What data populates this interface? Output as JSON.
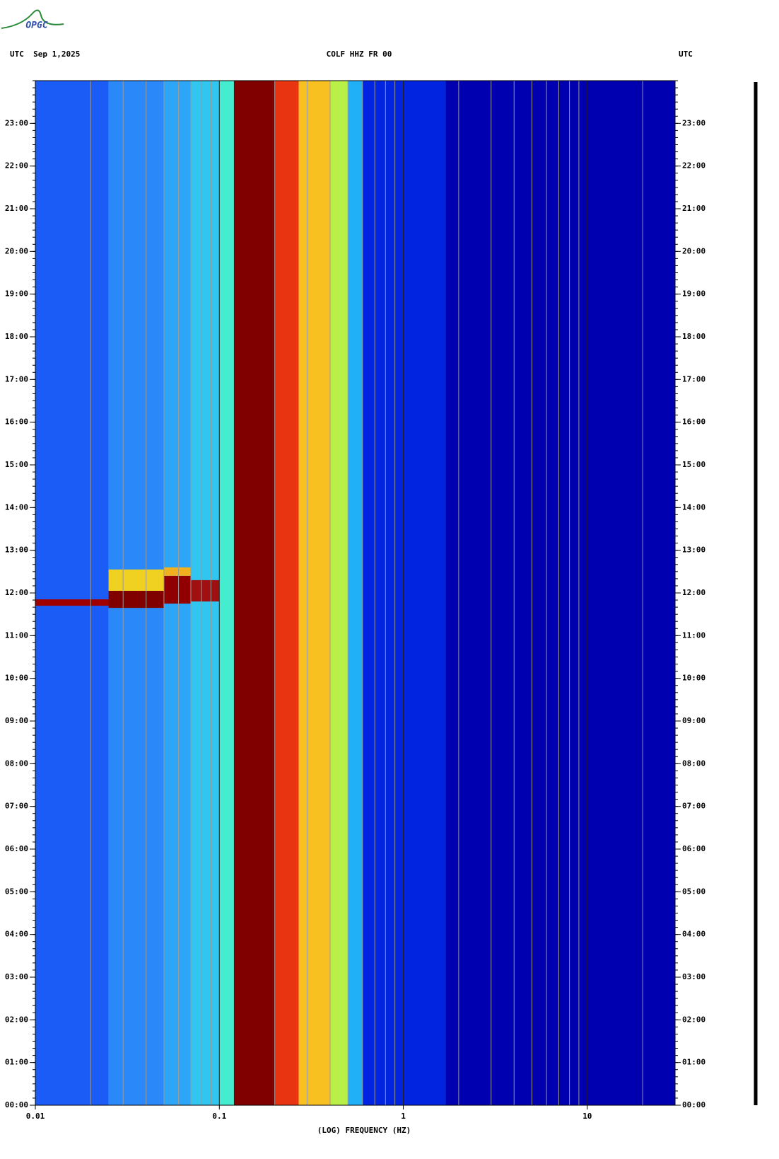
{
  "logo": "OPGC",
  "chart_data": {
    "type": "spectrogram",
    "title": "COLF HHZ FR 00",
    "date_label": "UTC  Sep 1,2025",
    "right_label": "UTC",
    "x_label": "(LOG) FREQUENCY (HZ)",
    "xlog": true,
    "xlim": [
      0.01,
      30
    ],
    "xticks": [
      0.01,
      0.1,
      1,
      10
    ],
    "xgrid": [
      0.02,
      0.03,
      0.04,
      0.05,
      0.06,
      0.07,
      0.08,
      0.09,
      0.2,
      0.3,
      0.4,
      0.5,
      0.6,
      0.7,
      0.8,
      0.9,
      2,
      3,
      4,
      5,
      6,
      7,
      8,
      9,
      20
    ],
    "ylim": [
      0,
      24
    ],
    "yminor_per_hour": 6,
    "yticks": [
      {
        "value": 0,
        "label": "00:00"
      },
      {
        "value": 1,
        "label": "01:00"
      },
      {
        "value": 2,
        "label": "02:00"
      },
      {
        "value": 3,
        "label": "03:00"
      },
      {
        "value": 4,
        "label": "04:00"
      },
      {
        "value": 5,
        "label": "05:00"
      },
      {
        "value": 6,
        "label": "06:00"
      },
      {
        "value": 7,
        "label": "07:00"
      },
      {
        "value": 8,
        "label": "08:00"
      },
      {
        "value": 9,
        "label": "09:00"
      },
      {
        "value": 10,
        "label": "10:00"
      },
      {
        "value": 11,
        "label": "11:00"
      },
      {
        "value": 12,
        "label": "12:00"
      },
      {
        "value": 13,
        "label": "13:00"
      },
      {
        "value": 14,
        "label": "14:00"
      },
      {
        "value": 15,
        "label": "15:00"
      },
      {
        "value": 16,
        "label": "16:00"
      },
      {
        "value": 17,
        "label": "17:00"
      },
      {
        "value": 18,
        "label": "18:00"
      },
      {
        "value": 19,
        "label": "19:00"
      },
      {
        "value": 20,
        "label": "20:00"
      },
      {
        "value": 21,
        "label": "21:00"
      },
      {
        "value": 22,
        "label": "22:00"
      },
      {
        "value": 23,
        "label": "23:00"
      }
    ],
    "bands": [
      {
        "from": 0.01,
        "to": 0.025,
        "color": "#1a5cf5"
      },
      {
        "from": 0.025,
        "to": 0.05,
        "color": "#2a88f8"
      },
      {
        "from": 0.05,
        "to": 0.07,
        "color": "#2ea6f8"
      },
      {
        "from": 0.07,
        "to": 0.1,
        "color": "#30c6f0"
      },
      {
        "from": 0.1,
        "to": 0.12,
        "color": "#44ecd0"
      },
      {
        "from": 0.12,
        "to": 0.2,
        "color": "#800000"
      },
      {
        "from": 0.2,
        "to": 0.27,
        "color": "#e83410"
      },
      {
        "from": 0.27,
        "to": 0.4,
        "color": "#f8c020"
      },
      {
        "from": 0.4,
        "to": 0.5,
        "color": "#b8f048"
      },
      {
        "from": 0.5,
        "to": 0.6,
        "color": "#20b0f8"
      },
      {
        "from": 0.6,
        "to": 1.7,
        "color": "#0024e0"
      },
      {
        "from": 1.7,
        "to": 30,
        "color": "#0000b0"
      }
    ],
    "events": [
      {
        "from": 0.01,
        "to": 0.025,
        "start": 11.7,
        "end": 11.85,
        "color": "#a00000"
      },
      {
        "from": 0.025,
        "to": 0.05,
        "start": 11.65,
        "end": 12.05,
        "color": "#800000"
      },
      {
        "from": 0.025,
        "to": 0.05,
        "start": 12.05,
        "end": 12.55,
        "color": "#f0d020"
      },
      {
        "from": 0.05,
        "to": 0.07,
        "start": 11.75,
        "end": 12.4,
        "color": "#900000"
      },
      {
        "from": 0.05,
        "to": 0.07,
        "start": 12.4,
        "end": 12.6,
        "color": "#f0b020"
      },
      {
        "from": 0.07,
        "to": 0.1,
        "start": 11.8,
        "end": 12.3,
        "color": "#a01010"
      }
    ]
  }
}
